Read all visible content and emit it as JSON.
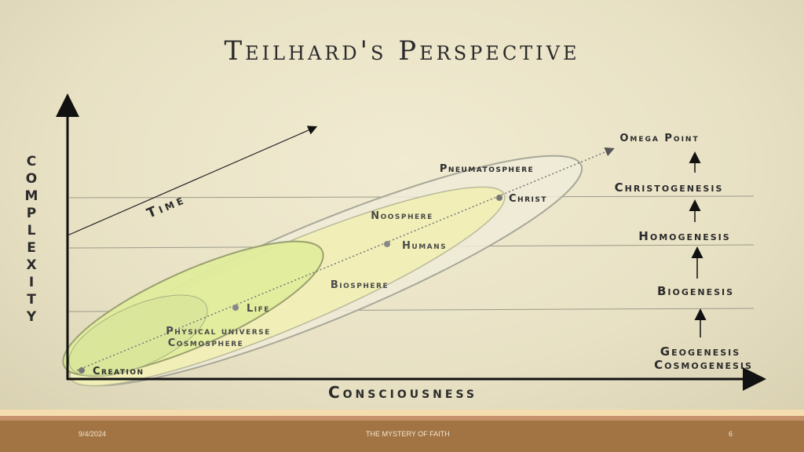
{
  "title": "Teilhard's Perspective",
  "axes": {
    "y_label": "COMPLEXITY",
    "x_label": "Consciousness",
    "time_label": "Time"
  },
  "spheres": [
    {
      "name": "Physical universe",
      "name2": "Cosmosphere",
      "color": "#d9e59a"
    },
    {
      "name": "Biosphere",
      "color": "#e3ee9e"
    },
    {
      "name": "Noosphere",
      "color": "#f1f0b4"
    },
    {
      "name": "Pneumatosphere",
      "color": "#efebd8"
    }
  ],
  "milestones": [
    "Creation",
    "Life",
    "Humans",
    "Christ"
  ],
  "stages": {
    "omega": "Omega Point",
    "christogenesis": "Christogenesis",
    "homogenesis": "Homogenesis",
    "biogenesis": "Biogenesis",
    "geogenesis": "Geogenesis",
    "cosmogenesis": "Cosmogenesis"
  },
  "footer": {
    "date": "9/4/2024",
    "title": "THE MYSTERY OF FAITH",
    "page": "6"
  }
}
